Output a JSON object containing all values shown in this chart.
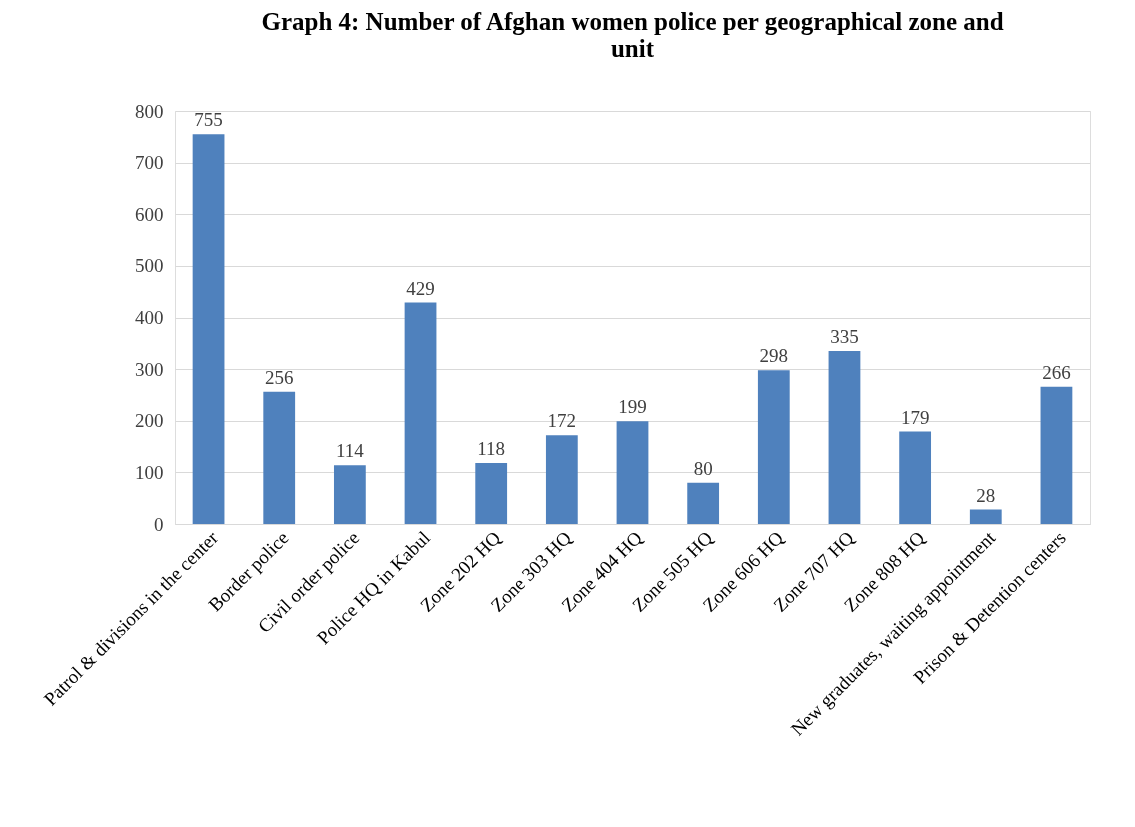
{
  "chart_data": {
    "type": "bar",
    "title": "Graph 4: Number of Afghan women police per geographical zone and unit",
    "categories": [
      "Patrol & divisions in the center",
      "Border police",
      "Civil order police",
      "Police HQ in Kabul",
      "Zone 202 HQ",
      "Zone 303 HQ",
      "Zone 404 HQ",
      "Zone  505 HQ",
      "Zone 606 HQ",
      "Zone 707 HQ",
      "Zone 808 HQ",
      "New graduates, waiting appointment",
      "Prison & Detention centers"
    ],
    "values": [
      755,
      256,
      114,
      429,
      118,
      172,
      199,
      80,
      298,
      335,
      179,
      28,
      266
    ],
    "color": "#4f81bd",
    "ylim": [
      0,
      800
    ],
    "yticks": [
      0,
      100,
      200,
      300,
      400,
      500,
      600,
      700,
      800
    ],
    "grid": "y",
    "data_labels": true
  }
}
